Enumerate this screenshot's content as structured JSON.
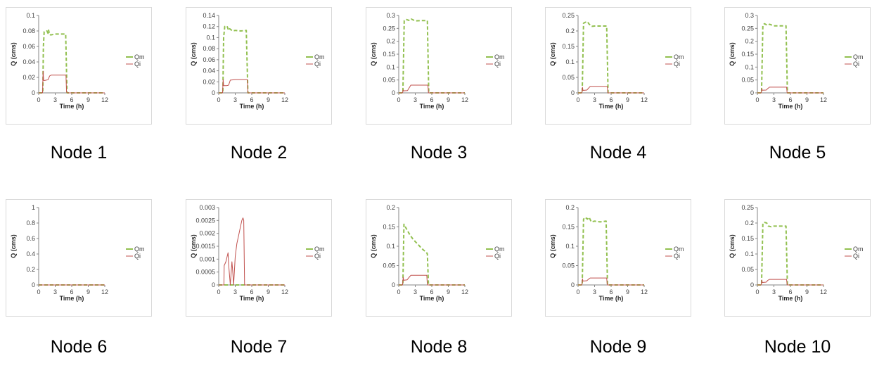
{
  "series_colors": {
    "Qm": "#92c050",
    "Qi": "#c0504d"
  },
  "chart_data": [
    {
      "type": "line",
      "caption": "Node 1",
      "xlabel": "Time (h)",
      "ylabel": "Q (cms)",
      "xlim": [
        0,
        12
      ],
      "xticks": [
        "0",
        "3",
        "6",
        "9",
        "12"
      ],
      "ylim": [
        0,
        0.1
      ],
      "yticks": [
        "0",
        "0.02",
        "0.04",
        "0.06",
        "0.08",
        "0.1"
      ],
      "legend": "right",
      "series": [
        {
          "name": "Qm",
          "x": [
            0,
            0.75,
            0.85,
            1.0,
            1.5,
            1.7,
            1.8,
            2.0,
            2.3,
            3.0,
            4.0,
            4.9,
            5.15,
            5.3,
            12
          ],
          "y": [
            0,
            0,
            0.06,
            0.079,
            0.08,
            0.077,
            0.081,
            0.075,
            0.075,
            0.076,
            0.076,
            0.076,
            0,
            0,
            0
          ]
        },
        {
          "name": "Qi",
          "x": [
            0,
            0.7,
            0.8,
            0.9,
            1.1,
            1.7,
            2.0,
            2.3,
            3.0,
            4.0,
            4.95,
            5.05,
            5.3,
            12
          ],
          "y": [
            0,
            0,
            0.028,
            0.016,
            0.016,
            0.017,
            0.022,
            0.023,
            0.023,
            0.023,
            0.023,
            0.001,
            0,
            0
          ]
        }
      ]
    },
    {
      "type": "line",
      "caption": "Node 2",
      "xlabel": "Time (h)",
      "ylabel": "Q (cms)",
      "xlim": [
        0,
        12
      ],
      "xticks": [
        "0",
        "3",
        "6",
        "9",
        "12"
      ],
      "ylim": [
        0,
        0.14
      ],
      "yticks": [
        "0",
        "0.02",
        "0.04",
        "0.06",
        "0.08",
        "0.1",
        "0.12",
        "0.14"
      ],
      "legend": "right",
      "series": [
        {
          "name": "Qm",
          "x": [
            0,
            0.75,
            0.9,
            1.1,
            1.5,
            1.8,
            2.0,
            2.5,
            3.0,
            4.0,
            5.0,
            5.3,
            5.5,
            12
          ],
          "y": [
            0,
            0,
            0.1,
            0.12,
            0.121,
            0.113,
            0.116,
            0.112,
            0.113,
            0.112,
            0.113,
            0,
            0,
            0
          ]
        },
        {
          "name": "Qi",
          "x": [
            0,
            0.7,
            0.8,
            0.9,
            1.4,
            1.8,
            2.1,
            3.0,
            4.0,
            5.2,
            5.3,
            12
          ],
          "y": [
            0,
            0,
            0.024,
            0.013,
            0.013,
            0.014,
            0.023,
            0.024,
            0.024,
            0.024,
            0,
            0
          ]
        }
      ]
    },
    {
      "type": "line",
      "caption": "Node 3",
      "xlabel": "Time (h)",
      "ylabel": "Q (cms)",
      "xlim": [
        0,
        12
      ],
      "xticks": [
        "0",
        "3",
        "6",
        "9",
        "12"
      ],
      "ylim": [
        0,
        0.3
      ],
      "yticks": [
        "0",
        "0.05",
        "0.1",
        "0.15",
        "0.2",
        "0.25",
        "0.3"
      ],
      "legend": "right",
      "series": [
        {
          "name": "Qm",
          "x": [
            0,
            0.75,
            1.0,
            1.3,
            2.0,
            2.3,
            3.0,
            4.0,
            5.2,
            5.45,
            5.6,
            12
          ],
          "y": [
            0,
            0,
            0.28,
            0.285,
            0.28,
            0.286,
            0.279,
            0.28,
            0.28,
            0,
            0,
            0
          ]
        },
        {
          "name": "Qi",
          "x": [
            0,
            0.7,
            0.8,
            0.9,
            1.6,
            1.9,
            2.2,
            3.0,
            4.0,
            5.3,
            5.4,
            12
          ],
          "y": [
            0,
            0,
            0.012,
            0.008,
            0.009,
            0.02,
            0.03,
            0.03,
            0.03,
            0.03,
            0,
            0
          ]
        }
      ]
    },
    {
      "type": "line",
      "caption": "Node 4",
      "xlabel": "Time (h)",
      "ylabel": "Q (cms)",
      "xlim": [
        0,
        12
      ],
      "xticks": [
        "0",
        "3",
        "6",
        "9",
        "12"
      ],
      "ylim": [
        0,
        0.25
      ],
      "yticks": [
        "0",
        "0.05",
        "0.1",
        "0.15",
        "0.2",
        "0.25"
      ],
      "legend": "right",
      "series": [
        {
          "name": "Qm",
          "x": [
            0,
            0.75,
            1.0,
            1.3,
            1.7,
            2.0,
            2.5,
            3.0,
            4.0,
            5.2,
            5.45,
            5.6,
            12
          ],
          "y": [
            0,
            0,
            0.225,
            0.228,
            0.23,
            0.222,
            0.215,
            0.216,
            0.216,
            0.216,
            0,
            0,
            0
          ]
        },
        {
          "name": "Qi",
          "x": [
            0,
            0.7,
            0.8,
            0.9,
            1.6,
            1.9,
            2.2,
            3.0,
            4.0,
            5.3,
            5.4,
            12
          ],
          "y": [
            0,
            0,
            0.018,
            0.008,
            0.009,
            0.015,
            0.021,
            0.021,
            0.021,
            0.021,
            0,
            0
          ]
        }
      ]
    },
    {
      "type": "line",
      "caption": "Node 5",
      "xlabel": "Time (h)",
      "ylabel": "Q (cms)",
      "xlim": [
        0,
        12
      ],
      "xticks": [
        "0",
        "3",
        "6",
        "9",
        "12"
      ],
      "ylim": [
        0,
        0.3
      ],
      "yticks": [
        "0",
        "0.05",
        "0.1",
        "0.15",
        "0.2",
        "0.25",
        "0.3"
      ],
      "legend": "right",
      "series": [
        {
          "name": "Qm",
          "x": [
            0,
            0.75,
            1.0,
            1.3,
            1.8,
            2.2,
            3.0,
            4.0,
            5.2,
            5.45,
            5.6,
            12
          ],
          "y": [
            0,
            0,
            0.263,
            0.268,
            0.262,
            0.266,
            0.26,
            0.26,
            0.26,
            0,
            0,
            0
          ]
        },
        {
          "name": "Qi",
          "x": [
            0,
            0.7,
            0.8,
            0.9,
            1.6,
            1.9,
            2.2,
            3.0,
            4.0,
            5.3,
            5.4,
            12
          ],
          "y": [
            0,
            0,
            0.016,
            0.01,
            0.011,
            0.017,
            0.022,
            0.022,
            0.022,
            0.022,
            0,
            0
          ]
        }
      ]
    },
    {
      "type": "line",
      "caption": "Node 6",
      "xlabel": "Time (h)",
      "ylabel": "Q (cms)",
      "xlim": [
        0,
        12
      ],
      "xticks": [
        "0",
        "3",
        "6",
        "9",
        "12"
      ],
      "ylim": [
        0,
        1
      ],
      "yticks": [
        "0",
        "0.2",
        "0.4",
        "0.6",
        "0.8",
        "1"
      ],
      "legend": "right",
      "series": [
        {
          "name": "Qm",
          "x": [
            0,
            12
          ],
          "y": [
            0,
            0
          ]
        },
        {
          "name": "Qi",
          "x": [
            0,
            12
          ],
          "y": [
            0,
            0
          ]
        }
      ]
    },
    {
      "type": "line",
      "caption": "Node 7",
      "xlabel": "Time (h)",
      "ylabel": "Q (cms)",
      "xlim": [
        0,
        12
      ],
      "xticks": [
        "0",
        "3",
        "6",
        "9",
        "12"
      ],
      "ylim": [
        0,
        0.003
      ],
      "yticks": [
        "0",
        "0.0005",
        "0.001",
        "0.0015",
        "0.002",
        "0.0025",
        "0.003"
      ],
      "legend": "right",
      "series": [
        {
          "name": "Qm",
          "x": [
            0,
            12
          ],
          "y": [
            0,
            0
          ]
        },
        {
          "name": "Qi",
          "x": [
            0,
            0.95,
            1.0,
            1.3,
            1.7,
            1.8,
            2.1,
            2.4,
            2.5,
            2.7,
            3.0,
            3.3,
            3.6,
            3.9,
            4.2,
            4.4,
            4.55,
            4.7,
            12
          ],
          "y": [
            0,
            0,
            0.00075,
            0.0009,
            0.00125,
            0.0008,
            0,
            0.0009,
            0.00065,
            0,
            0.0011,
            0.0016,
            0.0019,
            0.0022,
            0.0025,
            0.0026,
            0.0025,
            0,
            0
          ]
        }
      ]
    },
    {
      "type": "line",
      "caption": "Node 8",
      "xlabel": "Time (h)",
      "ylabel": "Q (cms)",
      "xlim": [
        0,
        12
      ],
      "xticks": [
        "0",
        "3",
        "6",
        "9",
        "12"
      ],
      "ylim": [
        0,
        0.2
      ],
      "yticks": [
        "0",
        "0.05",
        "0.1",
        "0.15",
        "0.2"
      ],
      "legend": "right",
      "series": [
        {
          "name": "Qm",
          "x": [
            0,
            0.75,
            0.95,
            1.2,
            1.6,
            2.0,
            2.5,
            3.0,
            3.5,
            4.0,
            4.5,
            5.0,
            5.2,
            5.4,
            12
          ],
          "y": [
            0,
            0,
            0.157,
            0.15,
            0.14,
            0.13,
            0.12,
            0.112,
            0.105,
            0.097,
            0.09,
            0.085,
            0.08,
            0,
            0
          ]
        },
        {
          "name": "Qi",
          "x": [
            0,
            0.7,
            0.8,
            0.9,
            1.5,
            1.9,
            2.2,
            3.0,
            4.0,
            5.1,
            5.2,
            12
          ],
          "y": [
            0,
            0,
            0.02,
            0.012,
            0.013,
            0.02,
            0.025,
            0.025,
            0.025,
            0.025,
            0,
            0
          ]
        }
      ]
    },
    {
      "type": "line",
      "caption": "Node 9",
      "xlabel": "Time (h)",
      "ylabel": "Q (cms)",
      "xlim": [
        0,
        12
      ],
      "xticks": [
        "0",
        "3",
        "6",
        "9",
        "12"
      ],
      "ylim": [
        0,
        0.2
      ],
      "yticks": [
        "0",
        "0.05",
        "0.1",
        "0.15",
        "0.2"
      ],
      "legend": "right",
      "series": [
        {
          "name": "Qm",
          "x": [
            0,
            0.75,
            1.0,
            1.3,
            1.7,
            2.0,
            2.4,
            3.0,
            4.0,
            5.1,
            5.35,
            5.5,
            12
          ],
          "y": [
            0,
            0,
            0.17,
            0.175,
            0.17,
            0.175,
            0.163,
            0.165,
            0.163,
            0.165,
            0,
            0,
            0
          ]
        },
        {
          "name": "Qi",
          "x": [
            0,
            0.7,
            0.8,
            0.9,
            1.6,
            1.9,
            2.2,
            3.0,
            4.0,
            5.2,
            5.3,
            12
          ],
          "y": [
            0,
            0,
            0.016,
            0.01,
            0.011,
            0.015,
            0.018,
            0.018,
            0.018,
            0.018,
            0,
            0
          ]
        }
      ]
    },
    {
      "type": "line",
      "caption": "Node 10",
      "xlabel": "Time (h)",
      "ylabel": "Q (cms)",
      "xlim": [
        0,
        12
      ],
      "xticks": [
        "0",
        "3",
        "6",
        "9",
        "12"
      ],
      "ylim": [
        0,
        0.25
      ],
      "yticks": [
        "0",
        "0.05",
        "0.1",
        "0.15",
        "0.2",
        "0.25"
      ],
      "legend": "right",
      "series": [
        {
          "name": "Qm",
          "x": [
            0,
            0.75,
            1.0,
            1.3,
            1.7,
            2.0,
            2.5,
            3.0,
            4.0,
            5.2,
            5.45,
            5.6,
            12
          ],
          "y": [
            0,
            0,
            0.2,
            0.202,
            0.2,
            0.19,
            0.188,
            0.19,
            0.19,
            0.19,
            0,
            0,
            0
          ]
        },
        {
          "name": "Qi",
          "x": [
            0,
            0.7,
            0.8,
            0.9,
            1.6,
            1.9,
            2.2,
            3.0,
            4.0,
            5.3,
            5.4,
            12
          ],
          "y": [
            0,
            0,
            0.016,
            0.008,
            0.009,
            0.015,
            0.018,
            0.018,
            0.018,
            0.018,
            0,
            0
          ]
        }
      ]
    }
  ]
}
